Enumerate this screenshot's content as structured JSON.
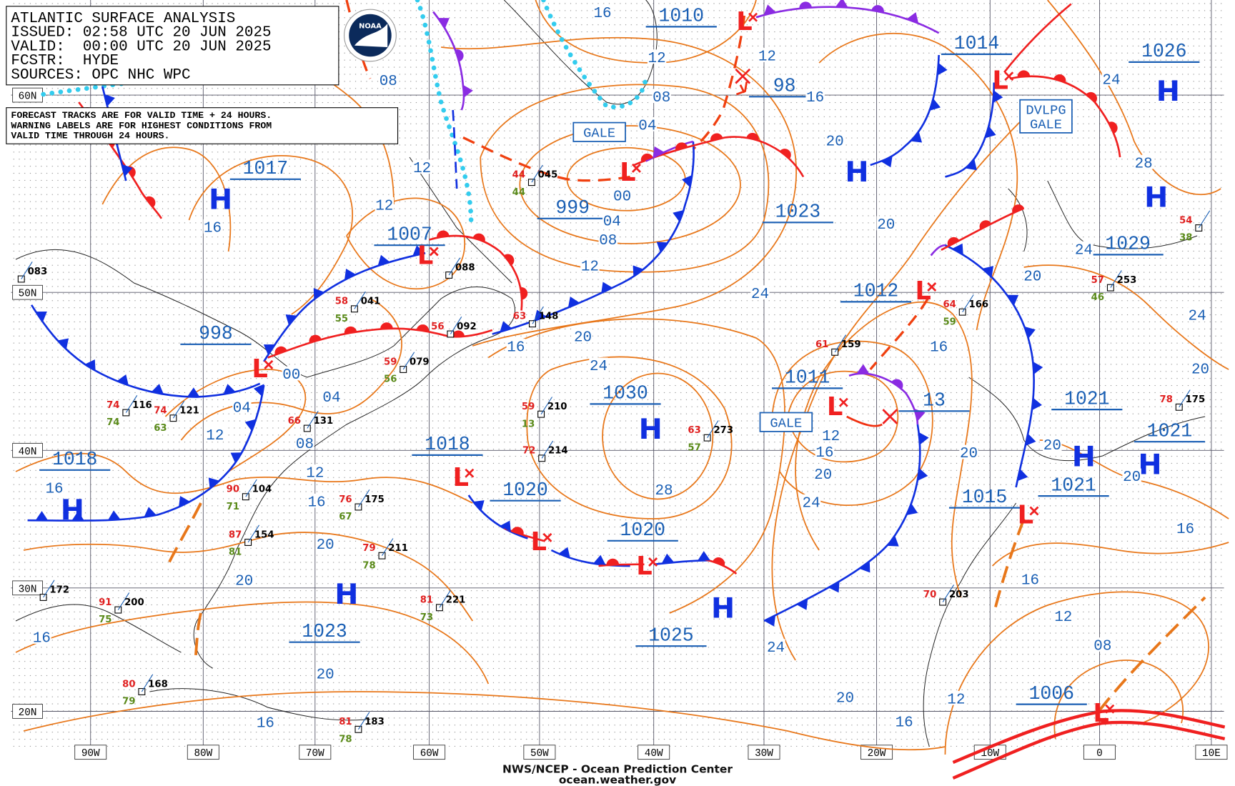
{
  "header": {
    "lines": [
      "ATLANTIC SURFACE ANALYSIS",
      "ISSUED: 02:58 UTC 20 JUN 2025",
      "VALID:  00:00 UTC 20 JUN 2025",
      "FCSTR:  HYDE",
      "SOURCES: OPC NHC WPC"
    ],
    "logo": "NOAA"
  },
  "note": [
    "FORECAST TRACKS ARE FOR VALID TIME + 24 HOURS.",
    "WARNING LABELS ARE FOR HIGHEST CONDITIONS FROM",
    "VALID TIME THROUGH 24 HOURS."
  ],
  "latitudes": [
    "60N",
    "50N",
    "40N",
    "30N",
    "20N"
  ],
  "longitudes": [
    "90W",
    "80W",
    "70W",
    "60W",
    "50W",
    "40W",
    "30W",
    "20W",
    "10W",
    "0",
    "10E"
  ],
  "pressure_labels": [
    "1010",
    "1014",
    "1026",
    "98",
    "1017",
    "999",
    "1007",
    "1023",
    "1029",
    "1012",
    "998",
    "1030",
    "1011",
    "13",
    "1021",
    "1021",
    "1018",
    "1018",
    "1020",
    "1020",
    "1015",
    "1021",
    "1023",
    "1025",
    "1006"
  ],
  "systems": [
    "L",
    "L",
    "L",
    "L",
    "L",
    "L",
    "L",
    "L",
    "L",
    "L",
    "L",
    "L",
    "H",
    "H",
    "H",
    "H",
    "H",
    "H",
    "H",
    "H",
    "H",
    "H"
  ],
  "isobar_labels": [
    "16",
    "12",
    "08",
    "04",
    "00",
    "04",
    "08",
    "12",
    "12",
    "16",
    "20",
    "20",
    "24",
    "24",
    "28",
    "24",
    "20",
    "24",
    "20",
    "20",
    "20",
    "16",
    "20",
    "16",
    "12",
    "16",
    "20",
    "24",
    "28",
    "24",
    "20",
    "16",
    "12",
    "12",
    "16",
    "08",
    "00",
    "04",
    "04",
    "12",
    "08",
    "12",
    "16",
    "20",
    "20",
    "16",
    "16",
    "20",
    "24",
    "20",
    "16",
    "12",
    "12",
    "16",
    "08",
    "16"
  ],
  "warnings": [
    [
      "GALE"
    ],
    [
      "DVLPG",
      "GALE"
    ],
    [
      "GALE"
    ]
  ],
  "stations": [
    {
      "pressure": "088"
    },
    {
      "pressure": "041",
      "temp": "58",
      "dew": "55"
    },
    {
      "pressure": "092",
      "temp": "56"
    },
    {
      "pressure": "148",
      "temp": "63"
    },
    {
      "pressure": "210",
      "temp": "59",
      "dew": "13"
    },
    {
      "pressure": "214",
      "temp": "72"
    },
    {
      "pressure": "273",
      "temp": "63",
      "dew": "57"
    },
    {
      "pressure": "159",
      "temp": "61"
    },
    {
      "pressure": "166",
      "temp": "64",
      "dew": "59"
    },
    {
      "pressure": "253",
      "temp": "57",
      "dew": "46"
    },
    {
      "pressure": "175",
      "temp": "78"
    },
    {
      "pressure": "203",
      "temp": "70"
    },
    {
      "pressure": "221",
      "temp": "81",
      "dew": "73"
    },
    {
      "pressure": "211",
      "temp": "79",
      "dew": "78"
    },
    {
      "pressure": "175",
      "temp": "76",
      "dew": "67"
    },
    {
      "pressure": "104",
      "temp": "90",
      "dew": "71"
    },
    {
      "pressure": "154",
      "temp": "87",
      "dew": "81"
    },
    {
      "pressure": "116",
      "temp": "74",
      "dew": "74"
    },
    {
      "pressure": "121",
      "temp": "74",
      "dew": "63"
    },
    {
      "pressure": "200",
      "temp": "91",
      "dew": "75"
    },
    {
      "pressure": "168",
      "temp": "80",
      "dew": "79"
    },
    {
      "pressure": "183",
      "temp": "81",
      "dew": "78"
    },
    {
      "pressure": "045",
      "temp": "44",
      "dew": "44"
    },
    {
      "pressure": "131",
      "temp": "66"
    },
    {
      "pressure": "079",
      "temp": "59",
      "dew": "56"
    },
    {
      "temp": "54",
      "dew": "38"
    },
    {
      "pressure": "172"
    },
    {
      "pressure": "083"
    }
  ],
  "footer": [
    "NWS/NCEP - Ocean Prediction Center",
    "ocean.weather.gov"
  ]
}
